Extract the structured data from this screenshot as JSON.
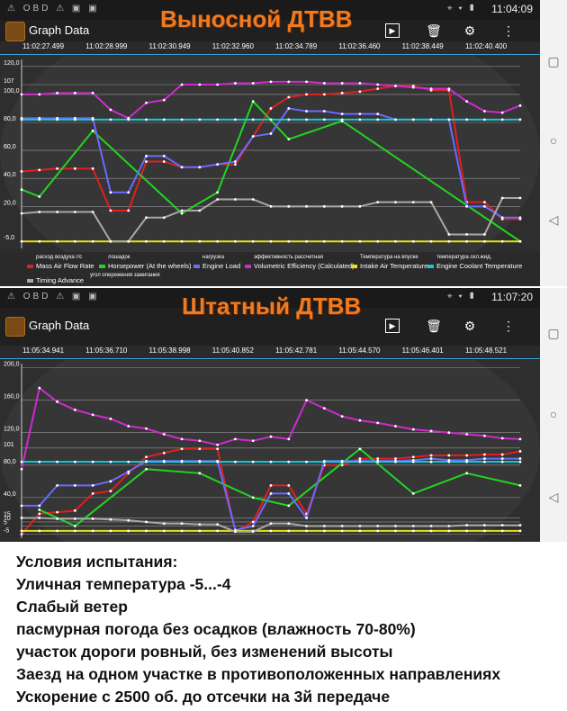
{
  "status_bar": {
    "top": {
      "left_icons": "⚠ OBD ⚠ ▣ ▣",
      "time": "11:04:09"
    },
    "bottom": {
      "left_icons": "⚠ OBD ⚠ ▣ ▣",
      "time": "11:07:20"
    }
  },
  "app": {
    "title": "Graph Data"
  },
  "overlays": {
    "top": "Выносной ДТВВ",
    "bottom": "Штатный ДТВВ"
  },
  "colors": {
    "maf": "#e0201e",
    "hp": "#22d422",
    "load": "#6a6aff",
    "ve": "#d02ad0",
    "iat": "#e8e018",
    "ect": "#18c8d8",
    "timing": "#a8a8a8",
    "overlay": "#f07a20"
  },
  "top_chart": {
    "timestamps": [
      "11:02:27.499",
      "11:02:28.999",
      "11:02:30.949",
      "11:02:32.960",
      "11:02:34.789",
      "11:02:36.460",
      "11:02:38.449",
      "11:02:40.400"
    ],
    "y_ticks": [
      "120,0",
      "107",
      "100,0",
      "80,0",
      "60,0",
      "40,0",
      "20,0",
      "-5,0"
    ],
    "legend": [
      {
        "ru": "расход воздуха г/с",
        "en": "Mass Air Flow Rate",
        "color": "#e0201e"
      },
      {
        "ru": "лошадок",
        "en": "Horsepower (At the wheels)",
        "color": "#22d422"
      },
      {
        "ru": "нагрузка",
        "en": "Engine Load",
        "color": "#6a6aff"
      },
      {
        "ru": "эффективность рассчетная",
        "en": "Volumetric Efficiency (Calculated)",
        "color": "#d02ad0"
      },
      {
        "ru": "Температура на впуске",
        "en": "Intake Air Temperature",
        "color": "#e8e018"
      },
      {
        "ru": "температура охл.жид.",
        "en": "Engine Coolant Temperature",
        "color": "#18c8d8"
      },
      {
        "ru": "угол опережения зажигания",
        "en": "Timing Advance",
        "color": "#a8a8a8"
      }
    ]
  },
  "bottom_chart": {
    "timestamps": [
      "11:05:34.941",
      "11:05:36.710",
      "11:05:38.998",
      "11:05:40.852",
      "11:05:42.781",
      "11:05:44.570",
      "11:05:46.401",
      "11:05:48.521"
    ],
    "y_ticks": [
      "200,0",
      "160,0",
      "120,0",
      "101",
      "80,0",
      "40,0",
      "15",
      "10",
      "5",
      "-5"
    ]
  },
  "notes": [
    "Условия испытания:",
    "Уличная температура -5...-4",
    "Слабый ветер",
    "пасмурная погода без осадков (влажность 70-80%)",
    "участок дороги ровный, без изменений высоты",
    "Заезд на одном участке в противоположенных направлениях",
    "Ускорение с 2500 об. до отсечки на 3й передаче"
  ],
  "chart_data": [
    {
      "type": "line",
      "title": "Выносной ДТВВ",
      "ylim": [
        -10,
        125
      ],
      "x": [
        0,
        1,
        2,
        3,
        4,
        5,
        6,
        7,
        8,
        9,
        10,
        11,
        12,
        13,
        14,
        15,
        16,
        17,
        18,
        19,
        20,
        21,
        22,
        23,
        24,
        25,
        26,
        27,
        28
      ],
      "series": [
        {
          "name": "Mass Air Flow Rate",
          "values": [
            45,
            46,
            47,
            47,
            47,
            17,
            17,
            52,
            52,
            48,
            48,
            50,
            50,
            70,
            90,
            98,
            100,
            100,
            101,
            102,
            104,
            106,
            106,
            103,
            103,
            23,
            23,
            11,
            11
          ]
        },
        {
          "name": "Horsepower (At the wheels)",
          "values": [
            32,
            27,
            null,
            null,
            74,
            null,
            null,
            null,
            null,
            15,
            null,
            30,
            null,
            95,
            null,
            68,
            null,
            null,
            81,
            null,
            null,
            null,
            null,
            null,
            null,
            null,
            null,
            null,
            -5
          ]
        },
        {
          "name": "Engine Load",
          "values": [
            83,
            83,
            83,
            83,
            83,
            30,
            30,
            56,
            56,
            48,
            48,
            50,
            52,
            70,
            72,
            90,
            88,
            88,
            86,
            86,
            86,
            82,
            82,
            82,
            82,
            20,
            20,
            12,
            12
          ]
        },
        {
          "name": "Volumetric Efficiency (Calculated)",
          "values": [
            100,
            100,
            101,
            101,
            101,
            89,
            83,
            94,
            96,
            107,
            107,
            107,
            108,
            108,
            109,
            109,
            109,
            108,
            108,
            108,
            107,
            106,
            105,
            104,
            104,
            95,
            88,
            87,
            92
          ]
        },
        {
          "name": "Intake Air Temperature",
          "values": [
            -5,
            -5,
            -5,
            -5,
            -5,
            -5,
            -5,
            -5,
            -5,
            -5,
            -5,
            -5,
            -5,
            -5,
            -5,
            -5,
            -5,
            -5,
            -5,
            -5,
            -5,
            -5,
            -5,
            -5,
            -5,
            -5,
            -5,
            -5,
            -5
          ]
        },
        {
          "name": "Engine Coolant Temperature",
          "values": [
            82,
            82,
            82,
            82,
            82,
            82,
            82,
            82,
            82,
            82,
            82,
            82,
            82,
            82,
            82,
            82,
            82,
            82,
            82,
            82,
            82,
            82,
            82,
            82,
            82,
            82,
            82,
            82,
            82
          ]
        },
        {
          "name": "Timing Advance",
          "values": [
            15,
            16,
            16,
            16,
            16,
            -5,
            -5,
            12,
            12,
            17,
            17,
            25,
            25,
            25,
            20,
            20,
            20,
            20,
            20,
            20,
            23,
            23,
            23,
            23,
            0,
            0,
            0,
            26,
            26
          ]
        }
      ]
    },
    {
      "type": "line",
      "title": "Штатный ДТВВ",
      "ylim": [
        -10,
        205
      ],
      "x": [
        0,
        1,
        2,
        3,
        4,
        5,
        6,
        7,
        8,
        9,
        10,
        11,
        12,
        13,
        14,
        15,
        16,
        17,
        18,
        19,
        20,
        21,
        22,
        23,
        24,
        25,
        26,
        27,
        28
      ],
      "series": [
        {
          "name": "Mass Air Flow Rate",
          "values": [
            -5,
            20,
            22,
            24,
            45,
            48,
            70,
            90,
            95,
            100,
            100,
            100,
            -2,
            10,
            55,
            55,
            20,
            80,
            80,
            88,
            88,
            88,
            90,
            92,
            92,
            92,
            93,
            93,
            97
          ]
        },
        {
          "name": "Horsepower (At the wheels)",
          "values": [
            null,
            25,
            null,
            5,
            null,
            null,
            null,
            75,
            null,
            null,
            70,
            null,
            null,
            40,
            null,
            30,
            null,
            null,
            null,
            100,
            null,
            null,
            45,
            null,
            null,
            70,
            null,
            null,
            55
          ]
        },
        {
          "name": "Engine Load",
          "values": [
            30,
            30,
            55,
            55,
            55,
            60,
            72,
            85,
            85,
            85,
            85,
            85,
            0,
            5,
            45,
            45,
            15,
            85,
            85,
            85,
            85,
            85,
            86,
            88,
            86,
            86,
            88,
            88,
            88
          ]
        },
        {
          "name": "Volumetric Efficiency (Calculated)",
          "values": [
            75,
            175,
            158,
            148,
            142,
            137,
            128,
            125,
            118,
            112,
            110,
            105,
            112,
            110,
            115,
            112,
            160,
            150,
            140,
            135,
            132,
            128,
            124,
            122,
            120,
            118,
            116,
            113,
            112
          ]
        },
        {
          "name": "Intake Air Temperature",
          "values": [
            -1,
            -1,
            -1,
            -1,
            -1,
            -1,
            -1,
            -1,
            -1,
            -1,
            -1,
            -1,
            -1,
            -1,
            -1,
            -1,
            -1,
            -1,
            -1,
            -1,
            -1,
            -1,
            -1,
            -1,
            -1,
            -1,
            -1,
            -1,
            -1
          ]
        },
        {
          "name": "Engine Coolant Temperature",
          "values": [
            84,
            84,
            84,
            84,
            84,
            84,
            84,
            84,
            84,
            84,
            84,
            84,
            84,
            84,
            84,
            84,
            84,
            84,
            84,
            84,
            84,
            84,
            84,
            84,
            84,
            84,
            84,
            84,
            84
          ]
        },
        {
          "name": "Timing Advance",
          "values": [
            15,
            15,
            14,
            14,
            14,
            13,
            12,
            10,
            8,
            8,
            7,
            7,
            -2,
            -2,
            8,
            8,
            5,
            5,
            5,
            5,
            5,
            5,
            5,
            5,
            5,
            6,
            6,
            6,
            6
          ]
        }
      ]
    }
  ]
}
